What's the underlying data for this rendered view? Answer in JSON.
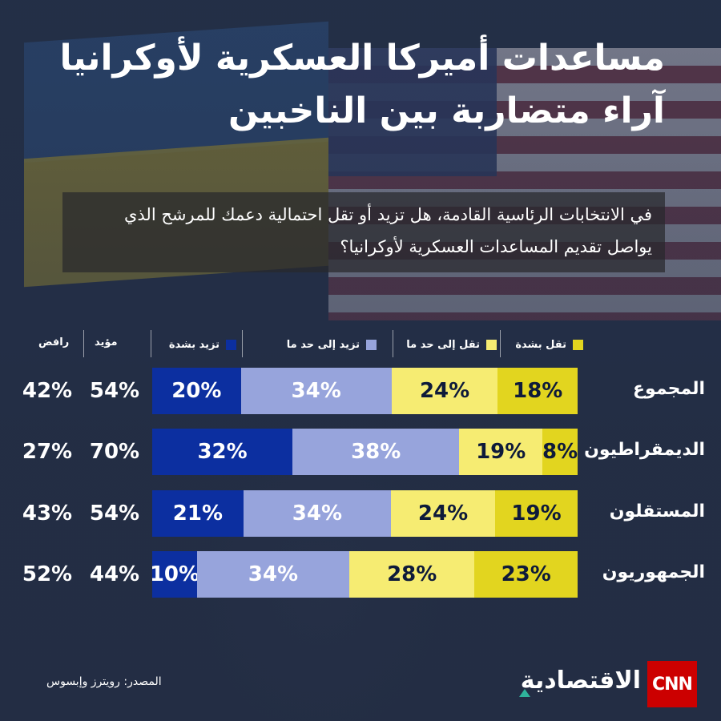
{
  "title_lines": [
    "مساعدات أميركا العسكرية لأوكرانيا",
    "آراء متضاربة بين الناخبين"
  ],
  "question_lines": [
    "في الانتخابات الرئاسية القادمة، هل تزيد أو تقل احتمالية دعمك للمرشح الذي",
    "يواصل تقديم المساعدات العسكرية لأوكرانيا؟"
  ],
  "legend": {
    "strong_decrease": "تقل بشدة",
    "somewhat_decrease": "تقل إلى حد ما",
    "somewhat_increase": "تزيد إلى حد ما",
    "strong_increase": "تزيد بشدة"
  },
  "column_headers": {
    "supporter": "مؤيد",
    "opponent": "رافض"
  },
  "colors": {
    "strong_decrease": "#e2d51f",
    "somewhat_decrease": "#f6ec72",
    "somewhat_increase": "#97a4dc",
    "strong_increase": "#0c2fa0"
  },
  "chart_data": {
    "type": "bar",
    "orientation": "horizontal-stacked-100",
    "categories": [
      "المجموع",
      "الديمقراطيون",
      "المستقلون",
      "الجمهوريون"
    ],
    "series": [
      {
        "name": "تقل بشدة",
        "values": [
          18,
          8,
          19,
          23
        ],
        "labels": [
          "18%",
          "8%",
          "19%",
          "23%"
        ]
      },
      {
        "name": "تقل إلى حد ما",
        "values": [
          24,
          19,
          24,
          28
        ],
        "labels": [
          "24%",
          "19%",
          "24%",
          "28%"
        ]
      },
      {
        "name": "تزيد إلى حد ما",
        "values": [
          34,
          38,
          34,
          34
        ],
        "labels": [
          "34%",
          "38%",
          "34%",
          "34%"
        ]
      },
      {
        "name": "تزيد بشدة",
        "values": [
          20,
          32,
          21,
          10
        ],
        "labels": [
          "20%",
          "32%",
          "21%",
          "10%"
        ]
      }
    ],
    "supporter": {
      "values": [
        54,
        70,
        54,
        44
      ],
      "labels": [
        "54%",
        "70%",
        "54%",
        "44%"
      ]
    },
    "opponent": {
      "values": [
        42,
        27,
        43,
        52
      ],
      "labels": [
        "42%",
        "27%",
        "43%",
        "52%"
      ]
    },
    "legend_position": "top"
  },
  "source": "المصدر: رويترز وإبسوس",
  "logo": {
    "brand": "CNN",
    "name": "الاقتصادية"
  }
}
